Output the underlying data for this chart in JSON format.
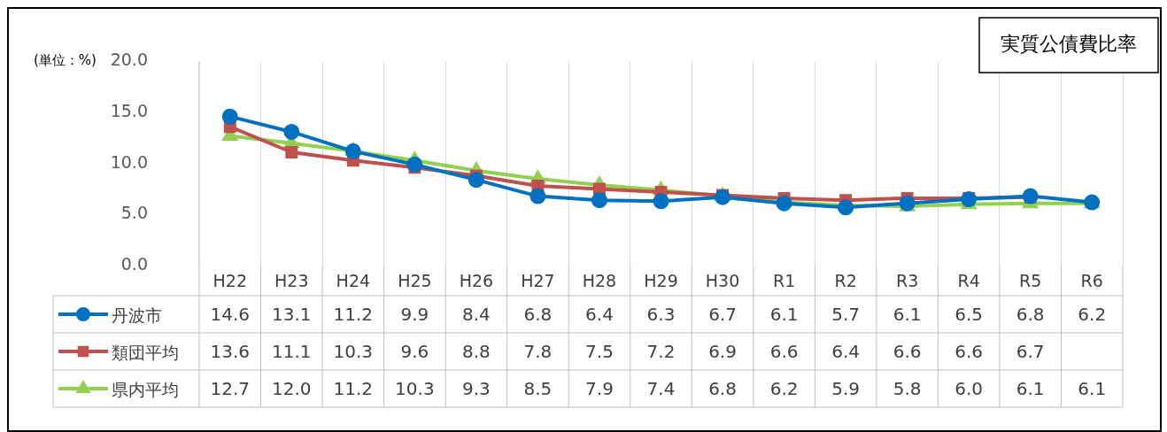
{
  "chart_data": {
    "type": "line",
    "title": "実質公債費比率",
    "ylabel": "(単位：%)",
    "categories": [
      "H22",
      "H23",
      "H24",
      "H25",
      "H26",
      "H27",
      "H28",
      "H29",
      "H30",
      "R1",
      "R2",
      "R3",
      "R4",
      "R5",
      "R6"
    ],
    "ylim": [
      0,
      20
    ],
    "yticks": [
      {
        "value": 0,
        "label": "0.0"
      },
      {
        "value": 5,
        "label": "5.0"
      },
      {
        "value": 10,
        "label": "10.0"
      },
      {
        "value": 15,
        "label": "15.0"
      },
      {
        "value": 20,
        "label": "20.0"
      }
    ],
    "grid": "x",
    "legend": "bottom",
    "line_style": "solid",
    "series": [
      {
        "name": "丹波市",
        "color": "#0070c0",
        "marker": "circle",
        "values": [
          14.6,
          13.1,
          11.2,
          9.9,
          8.4,
          6.8,
          6.4,
          6.3,
          6.7,
          6.1,
          5.7,
          6.1,
          6.5,
          6.8,
          6.2
        ],
        "value_labels": [
          "14.6",
          "13.1",
          "11.2",
          "9.9",
          "8.4",
          "6.8",
          "6.4",
          "6.3",
          "6.7",
          "6.1",
          "5.7",
          "6.1",
          "6.5",
          "6.8",
          "6.2"
        ]
      },
      {
        "name": "類団平均",
        "color": "#c0504d",
        "marker": "square",
        "values": [
          13.6,
          11.1,
          10.3,
          9.6,
          8.8,
          7.8,
          7.5,
          7.2,
          6.9,
          6.6,
          6.4,
          6.6,
          6.6,
          6.7,
          null
        ],
        "value_labels": [
          "13.6",
          "11.1",
          "10.3",
          "9.6",
          "8.8",
          "7.8",
          "7.5",
          "7.2",
          "6.9",
          "6.6",
          "6.4",
          "6.6",
          "6.6",
          "6.7",
          null
        ]
      },
      {
        "name": "県内平均",
        "color": "#92d050",
        "marker": "triangle",
        "values": [
          12.7,
          12.0,
          11.2,
          10.3,
          9.3,
          8.5,
          7.9,
          7.4,
          6.8,
          6.2,
          5.9,
          5.8,
          6.0,
          6.1,
          6.1
        ],
        "value_labels": [
          "12.7",
          "12.0",
          "11.2",
          "10.3",
          "9.3",
          "8.5",
          "7.9",
          "7.4",
          "6.8",
          "6.2",
          "5.9",
          "5.8",
          "6.0",
          "6.1",
          "6.1"
        ]
      }
    ]
  }
}
